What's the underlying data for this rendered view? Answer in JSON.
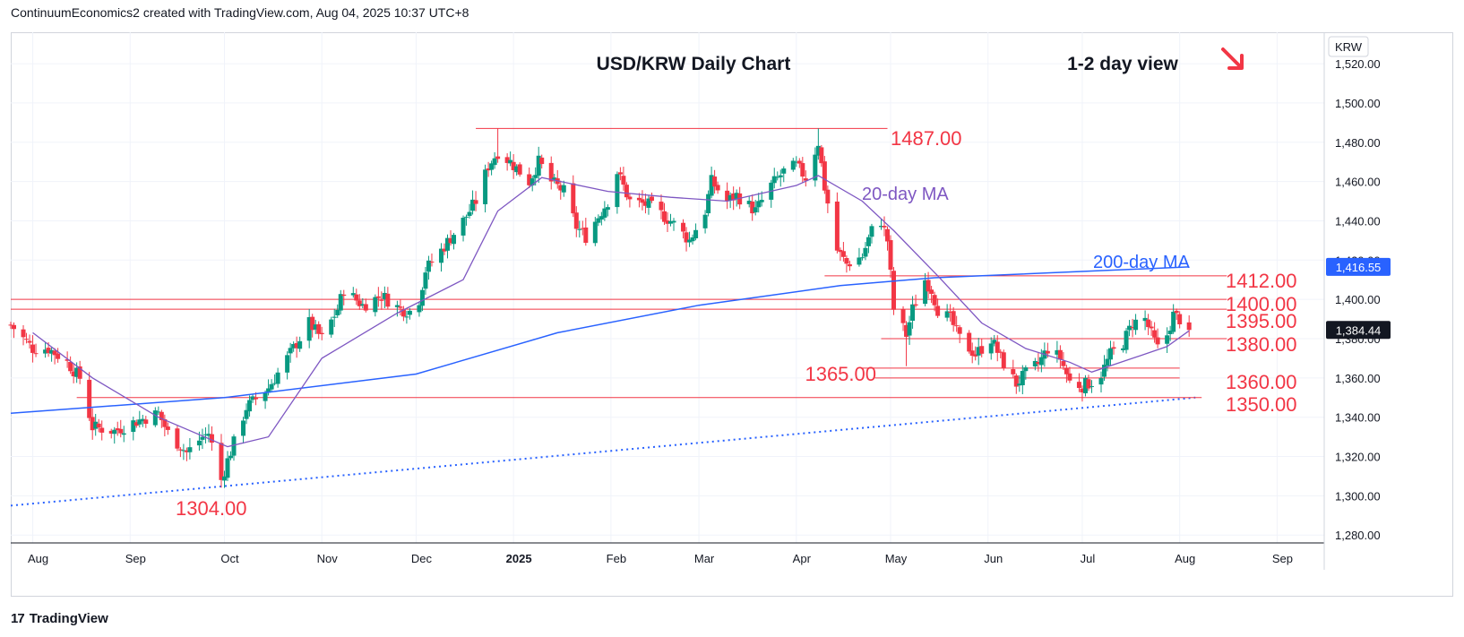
{
  "header": {
    "text": "ContinuumEconomics2 created with TradingView.com, Aug 04, 2025 10:37 UTC+8"
  },
  "footer": {
    "logo_glyph": "17",
    "brand": "TradingView"
  },
  "colors": {
    "up": "#089981",
    "down": "#f23645",
    "ma20": "#7e57c2",
    "ma200": "#2962ff",
    "trend": "#2962ff",
    "level": "#f23645",
    "label": "#f23645"
  },
  "chart_data": {
    "type": "candlestick",
    "title": "USD/KRW Daily Chart",
    "subtitle": "1-2 day view",
    "arrow": "down",
    "currency_label": "KRW",
    "y_axis": {
      "ticks": [
        1280,
        1300,
        1320,
        1340,
        1360,
        1380,
        1400,
        1420,
        1440,
        1460,
        1480,
        1500,
        1520
      ],
      "range": [
        1276,
        1536
      ]
    },
    "x_axis": {
      "labels": [
        "Aug",
        "Sep",
        "Oct",
        "Nov",
        "Dec",
        "2025",
        "Feb",
        "Mar",
        "Apr",
        "May",
        "Jun",
        "Jul",
        "Aug",
        "Sep"
      ]
    },
    "last_price": {
      "value": 1384.44,
      "label": "1,384.44"
    },
    "ma200_value": {
      "value": 1416.55,
      "label": "1,416.55"
    },
    "levels": [
      {
        "value": 1487,
        "label": "1487.00"
      },
      {
        "value": 1412,
        "label": "1412.00"
      },
      {
        "value": 1400,
        "label": "1400.00"
      },
      {
        "value": 1395,
        "label": "1395.00"
      },
      {
        "value": 1380,
        "label": "1380.00"
      },
      {
        "value": 1365,
        "label": "1365.00"
      },
      {
        "value": 1360,
        "label": "1360.00"
      },
      {
        "value": 1350,
        "label": "1350.00"
      },
      {
        "value": 1304,
        "label": "1304.00"
      }
    ],
    "annotations": [
      {
        "text": "20-day MA"
      },
      {
        "text": "200-day MA"
      }
    ],
    "anchors": [
      [
        "2024-07-25",
        1387
      ],
      [
        "2024-08-01",
        1375
      ],
      [
        "2024-08-06",
        1375
      ],
      [
        "2024-08-12",
        1368
      ],
      [
        "2024-08-16",
        1360
      ],
      [
        "2024-08-20",
        1335
      ],
      [
        "2024-08-27",
        1333
      ],
      [
        "2024-09-03",
        1338
      ],
      [
        "2024-09-10",
        1342
      ],
      [
        "2024-09-13",
        1332
      ],
      [
        "2024-09-19",
        1322
      ],
      [
        "2024-09-24",
        1330
      ],
      [
        "2024-09-26",
        1332
      ],
      [
        "2024-09-30",
        1308
      ],
      [
        "2024-10-02",
        1318
      ],
      [
        "2024-10-08",
        1345
      ],
      [
        "2024-10-15",
        1355
      ],
      [
        "2024-10-21",
        1370
      ],
      [
        "2024-10-28",
        1388
      ],
      [
        "2024-11-01",
        1380
      ],
      [
        "2024-11-06",
        1395
      ],
      [
        "2024-11-08",
        1405
      ],
      [
        "2024-11-14",
        1397
      ],
      [
        "2024-11-20",
        1402
      ],
      [
        "2024-11-26",
        1395
      ],
      [
        "2024-11-29",
        1394
      ],
      [
        "2024-12-02",
        1400
      ],
      [
        "2024-12-04",
        1415
      ],
      [
        "2024-12-09",
        1425
      ],
      [
        "2024-12-16",
        1440
      ],
      [
        "2024-12-20",
        1450
      ],
      [
        "2024-12-24",
        1468
      ],
      [
        "2024-12-27",
        1475
      ],
      [
        "2024-12-31",
        1470
      ],
      [
        "2025-01-06",
        1460
      ],
      [
        "2025-01-09",
        1470
      ],
      [
        "2025-01-13",
        1460
      ],
      [
        "2025-01-17",
        1455
      ],
      [
        "2025-01-21",
        1437
      ],
      [
        "2025-01-24",
        1432
      ],
      [
        "2025-01-31",
        1450
      ],
      [
        "2025-02-03",
        1465
      ],
      [
        "2025-02-07",
        1450
      ],
      [
        "2025-02-13",
        1448
      ],
      [
        "2025-02-20",
        1440
      ],
      [
        "2025-02-26",
        1430
      ],
      [
        "2025-03-03",
        1445
      ],
      [
        "2025-03-05",
        1460
      ],
      [
        "2025-03-10",
        1450
      ],
      [
        "2025-03-13",
        1453
      ],
      [
        "2025-03-19",
        1445
      ],
      [
        "2025-03-24",
        1458
      ],
      [
        "2025-03-28",
        1465
      ],
      [
        "2025-04-01",
        1468
      ],
      [
        "2025-04-04",
        1462
      ],
      [
        "2025-04-08",
        1480
      ],
      [
        "2025-04-10",
        1457
      ],
      [
        "2025-04-14",
        1425
      ],
      [
        "2025-04-17",
        1418
      ],
      [
        "2025-04-22",
        1422
      ],
      [
        "2025-04-25",
        1435
      ],
      [
        "2025-04-28",
        1440
      ],
      [
        "2025-04-30",
        1430
      ],
      [
        "2025-05-02",
        1395
      ],
      [
        "2025-05-06",
        1382
      ],
      [
        "2025-05-08",
        1395
      ],
      [
        "2025-05-12",
        1410
      ],
      [
        "2025-05-14",
        1405
      ],
      [
        "2025-05-16",
        1395
      ],
      [
        "2025-05-20",
        1390
      ],
      [
        "2025-05-23",
        1380
      ],
      [
        "2025-05-28",
        1372
      ],
      [
        "2025-06-02",
        1380
      ],
      [
        "2025-06-05",
        1370
      ],
      [
        "2025-06-10",
        1357
      ],
      [
        "2025-06-13",
        1362
      ],
      [
        "2025-06-17",
        1367
      ],
      [
        "2025-06-20",
        1375
      ],
      [
        "2025-06-24",
        1370
      ],
      [
        "2025-06-27",
        1358
      ],
      [
        "2025-07-01",
        1356
      ],
      [
        "2025-07-04",
        1358
      ],
      [
        "2025-07-07",
        1362
      ],
      [
        "2025-07-10",
        1372
      ],
      [
        "2025-07-14",
        1378
      ],
      [
        "2025-07-17",
        1388
      ],
      [
        "2025-07-21",
        1390
      ],
      [
        "2025-07-23",
        1382
      ],
      [
        "2025-07-25",
        1375
      ],
      [
        "2025-07-28",
        1382
      ],
      [
        "2025-07-30",
        1392
      ],
      [
        "2025-08-01",
        1390
      ],
      [
        "2025-08-04",
        1384.44
      ]
    ],
    "ma20_anchors": [
      [
        "2024-08-01",
        1383
      ],
      [
        "2024-08-20",
        1360
      ],
      [
        "2024-09-10",
        1340
      ],
      [
        "2024-10-02",
        1325
      ],
      [
        "2024-10-15",
        1330
      ],
      [
        "2024-11-01",
        1370
      ],
      [
        "2024-11-25",
        1393
      ],
      [
        "2024-12-16",
        1410
      ],
      [
        "2024-12-27",
        1445
      ],
      [
        "2025-01-10",
        1462
      ],
      [
        "2025-01-31",
        1455
      ],
      [
        "2025-02-20",
        1452
      ],
      [
        "2025-03-10",
        1450
      ],
      [
        "2025-04-01",
        1458
      ],
      [
        "2025-04-08",
        1463
      ],
      [
        "2025-04-22",
        1450
      ],
      [
        "2025-05-02",
        1435
      ],
      [
        "2025-05-16",
        1412
      ],
      [
        "2025-05-30",
        1388
      ],
      [
        "2025-06-13",
        1375
      ],
      [
        "2025-06-27",
        1368
      ],
      [
        "2025-07-04",
        1363
      ],
      [
        "2025-07-17",
        1370
      ],
      [
        "2025-07-28",
        1376
      ],
      [
        "2025-08-04",
        1384
      ]
    ],
    "ma200_anchors": [
      [
        "2024-07-25",
        1342
      ],
      [
        "2024-10-01",
        1350
      ],
      [
        "2024-12-01",
        1362
      ],
      [
        "2025-01-15",
        1383
      ],
      [
        "2025-03-01",
        1397
      ],
      [
        "2025-04-15",
        1407
      ],
      [
        "2025-05-15",
        1411
      ],
      [
        "2025-08-04",
        1416.55
      ]
    ],
    "trendline": {
      "from": [
        "2024-07-25",
        1295
      ],
      "to": [
        "2025-08-06",
        1350
      ]
    }
  }
}
